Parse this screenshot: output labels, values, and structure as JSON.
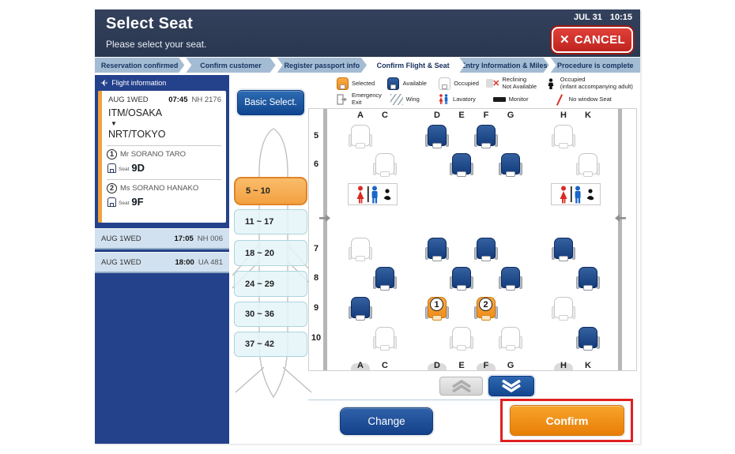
{
  "app": {
    "date": "JUL 31",
    "time": "10:15"
  },
  "colors": {
    "accent_orange": "#F09A38",
    "navy": "#24418C",
    "header_navy": "#2D3A52",
    "cancel_red": "#D22D26",
    "highlight_red": "#E01F1F",
    "seat_blue": "#1A4D9E"
  },
  "header": {
    "title": "Select Seat",
    "subtitle": "Please select your seat.",
    "cancel_label": "CANCEL"
  },
  "tabs": [
    {
      "label": "Reservation confirmed",
      "active": false
    },
    {
      "label": "Confirm customer",
      "active": false
    },
    {
      "label": "Register passport info",
      "active": false
    },
    {
      "label": "Confirm Flight & Seat",
      "active": true
    },
    {
      "label": "Entry Information & Miles",
      "active": false
    },
    {
      "label": "Procedure is complete",
      "active": false
    }
  ],
  "sidebar": {
    "header": "Flight information",
    "flight": {
      "date": "AUG 1WED",
      "time": "07:45",
      "flight_no": "NH 2176",
      "from": "ITM/OSAKA",
      "to": "NRT/TOKYO",
      "passengers": [
        {
          "num": "1",
          "name": "Mr SORANO TARO",
          "seat_label": "Seat",
          "seat": "9D"
        },
        {
          "num": "2",
          "name": "Ms SORANO HANAKO",
          "seat_label": "Seat",
          "seat": "9F"
        }
      ]
    },
    "other_flights": [
      {
        "date": "AUG 1WED",
        "time": "17:05",
        "flight_no": "NH 006"
      },
      {
        "date": "AUG 1WED",
        "time": "18:00",
        "flight_no": "UA 481"
      }
    ]
  },
  "selector": {
    "basic_select_label": "Basic Select.",
    "row_ranges": [
      {
        "label": "5 ~ 10",
        "selected": true
      },
      {
        "label": "11 ~ 17",
        "selected": false
      },
      {
        "label": "18 ~ 20",
        "selected": false
      },
      {
        "label": "24 ~ 29",
        "selected": false
      },
      {
        "label": "30 ~ 36",
        "selected": false
      },
      {
        "label": "37 ~ 42",
        "selected": false
      }
    ]
  },
  "legend": {
    "row1": [
      {
        "icon": "seat-selected-icon",
        "label": "Selected"
      },
      {
        "icon": "seat-available-icon",
        "label": "Available"
      },
      {
        "icon": "seat-occupied-icon",
        "label": "Occupied"
      },
      {
        "icon": "reclining-unavailable-icon",
        "label": "Reclining\nNot Available"
      },
      {
        "icon": "infant-occupied-icon",
        "label": "Occupied\n(infant accompanying adult)"
      }
    ],
    "row2": [
      {
        "icon": "emergency-exit-icon",
        "label": "Emergency\nExit"
      },
      {
        "icon": "wing-icon",
        "label": "Wing"
      },
      {
        "icon": "lavatory-icon",
        "label": "Lavatory"
      },
      {
        "icon": "monitor-icon",
        "label": "Monitor"
      },
      {
        "icon": "no-window-seat-icon",
        "label": "No window Seat"
      }
    ]
  },
  "seat_map": {
    "columns": [
      "A",
      "C",
      "D",
      "E",
      "F",
      "G",
      "H",
      "K"
    ],
    "rows": [
      "5",
      "6",
      "7",
      "8",
      "9",
      "10"
    ],
    "bottom_tab_columns": [
      "A",
      "D",
      "F",
      "H"
    ],
    "lavatory_positions": [
      "left",
      "right"
    ],
    "seats": [
      {
        "row": "5",
        "col": "A",
        "state": "occupied"
      },
      {
        "row": "5",
        "col": "D",
        "state": "available"
      },
      {
        "row": "5",
        "col": "F",
        "state": "available"
      },
      {
        "row": "5",
        "col": "H",
        "state": "occupied"
      },
      {
        "row": "6",
        "col": "C",
        "state": "occupied"
      },
      {
        "row": "6",
        "col": "E",
        "state": "available"
      },
      {
        "row": "6",
        "col": "G",
        "state": "available"
      },
      {
        "row": "6",
        "col": "K",
        "state": "occupied"
      },
      {
        "row": "7",
        "col": "A",
        "state": "occupied"
      },
      {
        "row": "7",
        "col": "D",
        "state": "available"
      },
      {
        "row": "7",
        "col": "F",
        "state": "available"
      },
      {
        "row": "7",
        "col": "H",
        "state": "available"
      },
      {
        "row": "8",
        "col": "C",
        "state": "available"
      },
      {
        "row": "8",
        "col": "E",
        "state": "available"
      },
      {
        "row": "8",
        "col": "G",
        "state": "available"
      },
      {
        "row": "8",
        "col": "K",
        "state": "available"
      },
      {
        "row": "9",
        "col": "A",
        "state": "available"
      },
      {
        "row": "9",
        "col": "D",
        "state": "selected",
        "passenger": "1"
      },
      {
        "row": "9",
        "col": "F",
        "state": "selected",
        "passenger": "2"
      },
      {
        "row": "9",
        "col": "H",
        "state": "occupied"
      },
      {
        "row": "10",
        "col": "C",
        "state": "occupied"
      },
      {
        "row": "10",
        "col": "E",
        "state": "occupied"
      },
      {
        "row": "10",
        "col": "G",
        "state": "occupied"
      },
      {
        "row": "10",
        "col": "K",
        "state": "available"
      }
    ]
  },
  "footer": {
    "change_label": "Change",
    "confirm_label": "Confirm"
  }
}
